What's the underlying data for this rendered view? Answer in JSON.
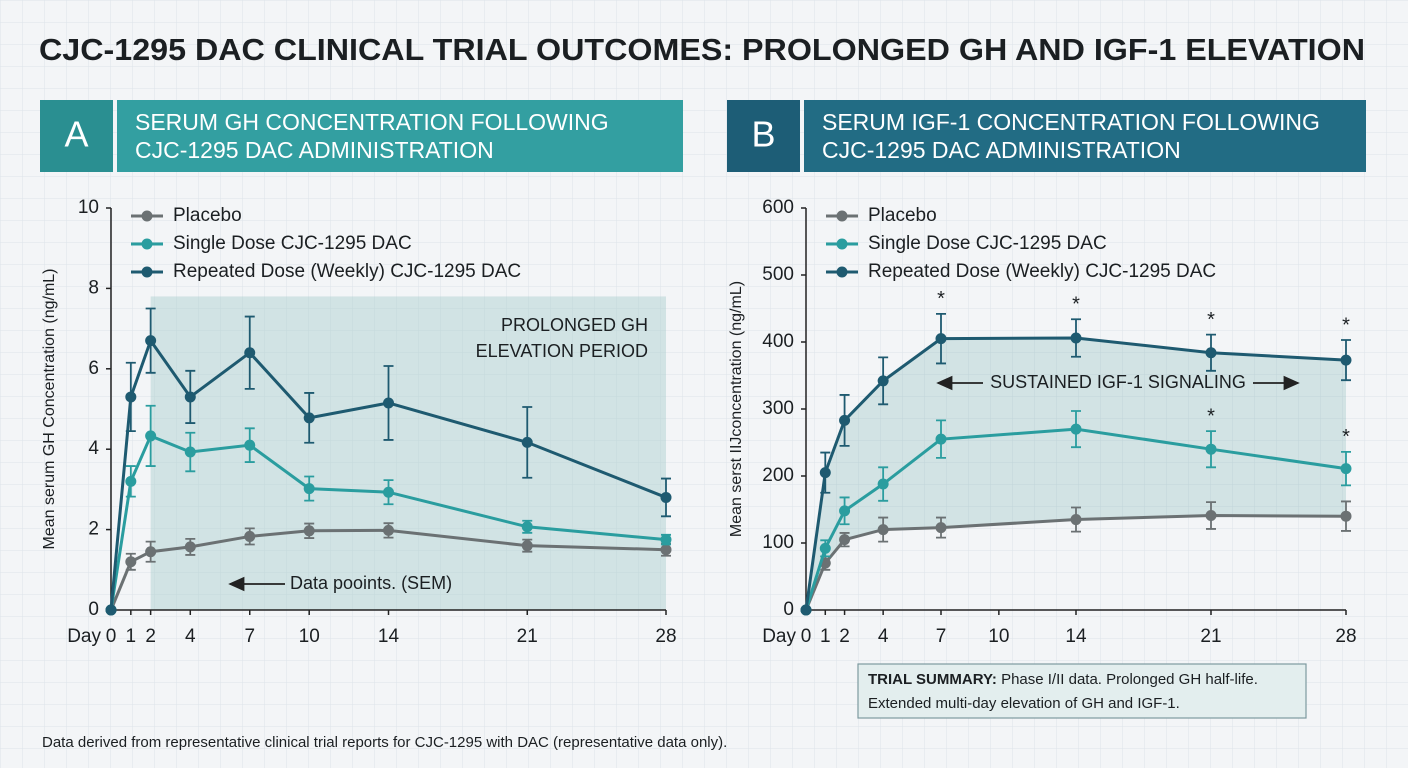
{
  "title": "CJC-1295 DAC CLINICAL TRIAL OUTCOMES: PROLONGED GH AND IGF-1 ELEVATION",
  "footer": "Data derived from representative clinical trial reports for CJC-1295 with DAC (representative data only).",
  "summary": {
    "label": "TRIAL SUMMARY:",
    "lines": [
      "Phase I/II data. Prolonged GH half-life.",
      "Extended multi-day elevation of GH and IGF-1."
    ]
  },
  "chart_data": [
    {
      "type": "line",
      "panel": "A",
      "title": [
        "SERUM GH CONCENTRATION FOLLOWING",
        "CJC-1295 DAC ADMINISTRATION"
      ],
      "header_colors": [
        "#2a8f91",
        "#339fa1"
      ],
      "x_label": "Day",
      "y_label": "Mean serum GH Concentration (ng/mL)",
      "x": [
        0,
        1,
        2,
        4,
        7,
        10,
        14,
        21,
        28
      ],
      "xlim": [
        0,
        28
      ],
      "xticks": [
        0,
        1,
        2,
        4,
        7,
        10,
        14,
        21,
        28
      ],
      "ylim": [
        0,
        10
      ],
      "yticks": [
        0,
        2,
        4,
        6,
        8,
        10
      ],
      "legend": "upper left",
      "grid": false,
      "series": [
        {
          "name": "Placebo",
          "color": "#6b7173",
          "values": [
            0,
            1.2,
            1.45,
            1.57,
            1.83,
            1.97,
            1.98,
            1.6,
            1.5
          ],
          "errors": [
            null,
            0.2,
            0.25,
            0.2,
            0.2,
            0.18,
            0.18,
            0.15,
            0.15
          ]
        },
        {
          "name": "Single Dose CJC-1295 DAC",
          "color": "#2a9d9f",
          "values": [
            0,
            3.2,
            4.33,
            3.93,
            4.1,
            3.02,
            2.93,
            2.07,
            1.75
          ],
          "errors": [
            null,
            0.38,
            0.75,
            0.48,
            0.42,
            0.3,
            0.3,
            0.15,
            0.12
          ]
        },
        {
          "name": "Repeated Dose (Weekly) CJC-1295 DAC",
          "color": "#1e5a70",
          "values": [
            0,
            5.3,
            6.7,
            5.3,
            6.4,
            4.78,
            5.15,
            4.17,
            2.8
          ],
          "errors": [
            null,
            0.85,
            0.8,
            0.65,
            0.9,
            0.62,
            0.92,
            0.88,
            0.47
          ]
        }
      ],
      "highlight": {
        "x0": 2,
        "x1": 28,
        "y1": 7.8,
        "label": [
          "PROLONGED GH",
          "ELEVATION PERIOD"
        ]
      },
      "note": "Data pooints. (SEM)"
    },
    {
      "type": "line",
      "panel": "B",
      "title": [
        "SERUM IGF-1 CONCENTRATION FOLLOWING",
        "CJC-1295 DAC ADMINISTRATION"
      ],
      "header_colors": [
        "#1d5d76",
        "#226c84"
      ],
      "x_label": "Day",
      "y_label": "Mean serst IIJconcentration (ng/mL)",
      "x": [
        0,
        1,
        2,
        4,
        7,
        14,
        21,
        28
      ],
      "xlim": [
        0,
        28
      ],
      "xticks": [
        0,
        1,
        2,
        4,
        7,
        10,
        14,
        21,
        28
      ],
      "ylim": [
        0,
        600
      ],
      "yticks": [
        0,
        100,
        200,
        300,
        400,
        500,
        600
      ],
      "legend": "upper left",
      "grid": false,
      "series": [
        {
          "name": "Placebo",
          "color": "#6b7173",
          "values": [
            0,
            70,
            105,
            120,
            123,
            135,
            141,
            140
          ],
          "errors": [
            null,
            10,
            10,
            18,
            15,
            18,
            20,
            22
          ]
        },
        {
          "name": "Single Dose CJC-1295 DAC",
          "color": "#2a9d9f",
          "values": [
            0,
            92,
            148,
            188,
            255,
            270,
            240,
            211
          ],
          "errors": [
            null,
            12,
            20,
            25,
            28,
            27,
            27,
            25
          ],
          "point_labels": [
            null,
            null,
            null,
            null,
            null,
            null,
            "*",
            "*"
          ]
        },
        {
          "name": "Repeated Dose (Weekly) CJC-1295 DAC",
          "color": "#1e5a70",
          "values": [
            0,
            205,
            283,
            342,
            405,
            406,
            384,
            373
          ],
          "errors": [
            null,
            30,
            38,
            35,
            37,
            28,
            27,
            30
          ],
          "point_labels": [
            null,
            null,
            null,
            null,
            "*",
            "*",
            "*",
            "*"
          ]
        }
      ],
      "fill_between": [
        0,
        2
      ],
      "note": "SUSTAINED IGF-1 SIGNALING"
    }
  ]
}
